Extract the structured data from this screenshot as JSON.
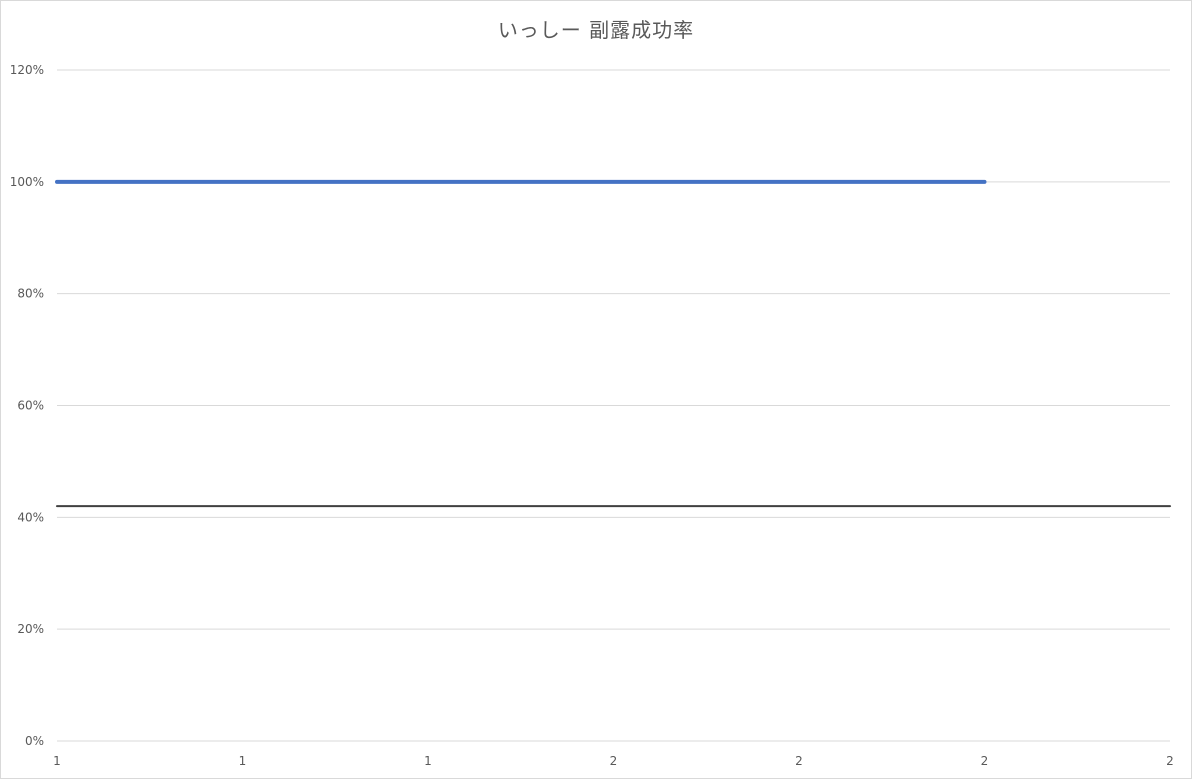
{
  "chart_data": {
    "type": "line",
    "title": "いっしー 副露成功率",
    "categories": [
      "1",
      "1",
      "1",
      "2",
      "2",
      "2",
      "2"
    ],
    "y_ticks": [
      "0%",
      "20%",
      "40%",
      "60%",
      "80%",
      "100%",
      "120%"
    ],
    "ylim": [
      0,
      1.2
    ],
    "grid": true,
    "legend": "none",
    "series": [
      {
        "color": "#4472c4",
        "values": [
          1.0,
          1.0,
          1.0,
          1.0,
          1.0,
          1.0,
          null
        ]
      },
      {
        "color": "#404040",
        "values": [
          0.42,
          0.42,
          0.42,
          0.42,
          0.42,
          0.42,
          0.42
        ]
      }
    ]
  }
}
